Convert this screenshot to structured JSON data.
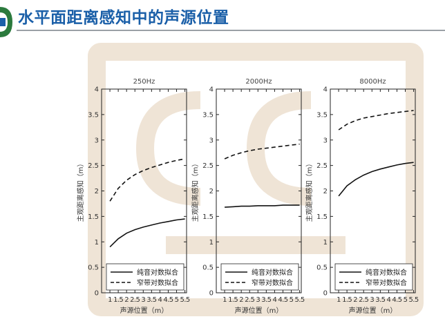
{
  "slide": {
    "title": "水平面距离感知中的声源位置"
  },
  "colors": {
    "title": "#1a5fa8",
    "logo": "#2b7a3d",
    "rule": "#9aa0a6",
    "watermark": "#efe4d6",
    "line": "#111111"
  },
  "chart_data": [
    {
      "type": "line",
      "title": "250Hz",
      "xlabel": "声源位置（m）",
      "ylabel": "主观距离感知（m）",
      "xlim": [
        0.5,
        5.6
      ],
      "ylim": [
        0,
        4
      ],
      "xticks": [
        "1",
        "1.5",
        "2",
        "2.5",
        "3",
        "3.5",
        "4",
        "4.5",
        "5",
        "5.5"
      ],
      "yticks": [
        "0",
        "0.5",
        "1",
        "1.5",
        "2",
        "2.5",
        "3",
        "3.5",
        "4"
      ],
      "legend": {
        "position": "bottom-right"
      },
      "series": [
        {
          "name": "纯音对数拟合",
          "style": "solid",
          "x": [
            1,
            1.5,
            2,
            2.5,
            3,
            3.5,
            4,
            4.5,
            5,
            5.5
          ],
          "y": [
            0.9,
            1.06,
            1.17,
            1.24,
            1.29,
            1.33,
            1.37,
            1.4,
            1.43,
            1.45
          ]
        },
        {
          "name": "窄带对数拟合",
          "style": "dashed",
          "x": [
            1,
            1.5,
            2,
            2.5,
            3,
            3.5,
            4,
            4.5,
            5,
            5.5
          ],
          "y": [
            1.8,
            2.05,
            2.21,
            2.32,
            2.4,
            2.46,
            2.51,
            2.56,
            2.6,
            2.63
          ]
        }
      ]
    },
    {
      "type": "line",
      "title": "2000Hz",
      "xlabel": "声源位置（m）",
      "ylabel": "主观距离感知（m）",
      "xlim": [
        0.5,
        5.6
      ],
      "ylim": [
        0,
        4
      ],
      "xticks": [
        "1",
        "1.5",
        "2",
        "2.5",
        "3",
        "3.5",
        "4",
        "4.5",
        "5",
        "5.5"
      ],
      "yticks": [
        "0",
        "0.5",
        "1",
        "1.5",
        "2",
        "2.5",
        "3",
        "3.5",
        "4"
      ],
      "legend": {
        "position": "bottom-right"
      },
      "series": [
        {
          "name": "纯音对数拟合",
          "style": "solid",
          "x": [
            1,
            1.5,
            2,
            2.5,
            3,
            3.5,
            4,
            4.5,
            5,
            5.5
          ],
          "y": [
            1.68,
            1.69,
            1.7,
            1.7,
            1.71,
            1.71,
            1.71,
            1.72,
            1.72,
            1.72
          ]
        },
        {
          "name": "窄带对数拟合",
          "style": "dashed",
          "x": [
            1,
            1.5,
            2,
            2.5,
            3,
            3.5,
            4,
            4.5,
            5,
            5.5
          ],
          "y": [
            2.63,
            2.7,
            2.75,
            2.79,
            2.82,
            2.84,
            2.86,
            2.88,
            2.9,
            2.92
          ]
        }
      ]
    },
    {
      "type": "line",
      "title": "8000Hz",
      "xlabel": "声源位置（m）",
      "ylabel": "主观距离感知（m）",
      "xlim": [
        0.5,
        5.6
      ],
      "ylim": [
        0,
        4
      ],
      "xticks": [
        "1",
        "1.5",
        "2",
        "2.5",
        "3",
        "3.5",
        "4",
        "4.5",
        "5",
        "5.5"
      ],
      "yticks": [
        "0",
        "0.5",
        "1",
        "1.5",
        "2",
        "2.5",
        "3",
        "3.5",
        "4"
      ],
      "legend": {
        "position": "bottom-right"
      },
      "series": [
        {
          "name": "纯音对数拟合",
          "style": "solid",
          "x": [
            1,
            1.5,
            2,
            2.5,
            3,
            3.5,
            4,
            4.5,
            5,
            5.5
          ],
          "y": [
            1.9,
            2.1,
            2.22,
            2.31,
            2.38,
            2.43,
            2.47,
            2.51,
            2.54,
            2.56
          ]
        },
        {
          "name": "窄带对数拟合",
          "style": "dashed",
          "x": [
            1,
            1.5,
            2,
            2.5,
            3,
            3.5,
            4,
            4.5,
            5,
            5.5
          ],
          "y": [
            3.2,
            3.31,
            3.38,
            3.43,
            3.46,
            3.49,
            3.52,
            3.54,
            3.56,
            3.58
          ]
        }
      ]
    }
  ]
}
